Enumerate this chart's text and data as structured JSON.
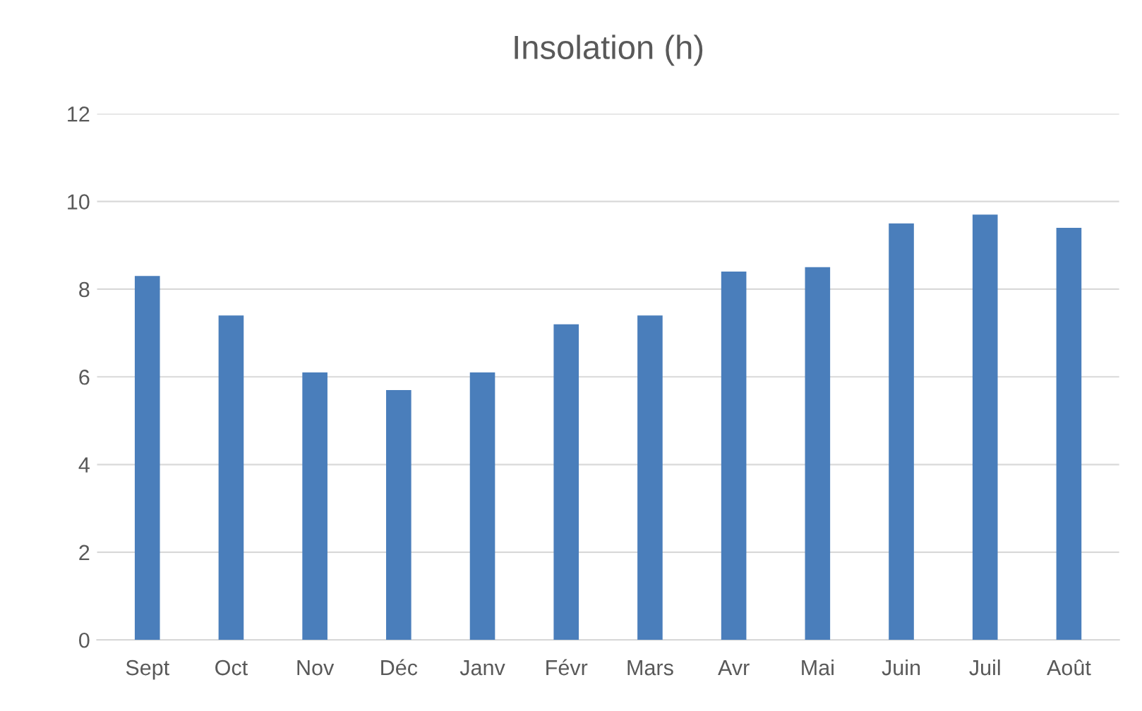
{
  "chart_data": {
    "type": "bar",
    "title": "Insolation (h)",
    "categories": [
      "Sept",
      "Oct",
      "Nov",
      "Déc",
      "Janv",
      "Févr",
      "Mars",
      "Avr",
      "Mai",
      "Juin",
      "Juil",
      "Août"
    ],
    "values": [
      8.3,
      7.4,
      6.1,
      5.7,
      6.1,
      7.2,
      7.4,
      8.4,
      8.5,
      9.5,
      9.7,
      9.4
    ],
    "color": "#4a7ebb",
    "ylim": [
      0,
      12
    ],
    "yticks": [
      0,
      2,
      4,
      6,
      8,
      10,
      12
    ],
    "grid": "y",
    "legend": false
  }
}
